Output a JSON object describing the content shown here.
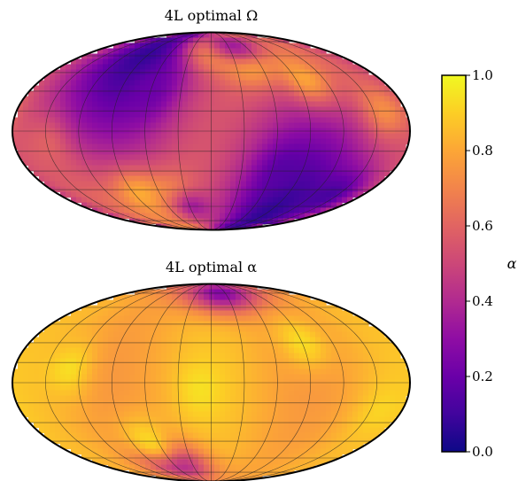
{
  "chart_data": [
    {
      "type": "heatmap",
      "projection": "mollweide",
      "title": "4L optimal Ω",
      "hotspots": [
        {
          "lon": 7,
          "lat": 65,
          "value": 0.85
        },
        {
          "lon": 45,
          "lat": 55,
          "value": 0.92
        },
        {
          "lon": 40,
          "lat": 70,
          "value": 0.3
        },
        {
          "lon": 100,
          "lat": 40,
          "value": 0.82
        },
        {
          "lon": 160,
          "lat": 15,
          "value": 0.75
        },
        {
          "lon": -40,
          "lat": -55,
          "value": 0.95
        },
        {
          "lon": -80,
          "lat": -50,
          "value": 0.85
        },
        {
          "lon": -25,
          "lat": -60,
          "value": 0.3
        },
        {
          "lon": -60,
          "lat": 30,
          "value": 0.2
        },
        {
          "lon": 70,
          "lat": -30,
          "value": 0.15
        },
        {
          "lon": 140,
          "lat": -50,
          "value": 0.1
        },
        {
          "lon": -150,
          "lat": -10,
          "value": 0.6
        }
      ]
    },
    {
      "type": "heatmap",
      "projection": "mollweide",
      "title": "4L optimal α",
      "hotspots": [
        {
          "lon": 20,
          "lat": 75,
          "value": 0.2
        },
        {
          "lon": -55,
          "lat": -65,
          "value": 0.25
        },
        {
          "lon": 90,
          "lat": 30,
          "value": 0.95
        },
        {
          "lon": -10,
          "lat": -5,
          "value": 0.95
        },
        {
          "lon": -130,
          "lat": 10,
          "value": 0.95
        },
        {
          "lon": 160,
          "lat": -20,
          "value": 0.92
        },
        {
          "lon": -70,
          "lat": -45,
          "value": 0.95
        }
      ]
    }
  ],
  "colorbar": {
    "label": "α",
    "min": 0.0,
    "max": 1.0,
    "ticks": [
      "0.0",
      "0.2",
      "0.4",
      "0.6",
      "0.8",
      "1.0"
    ],
    "colormap": "plasma",
    "colors": [
      "#0d0887",
      "#41049d",
      "#6a00a8",
      "#8f0da4",
      "#b12a90",
      "#cc4778",
      "#e16462",
      "#f2844b",
      "#fca636",
      "#fcce25",
      "#f0f921"
    ]
  },
  "grid": true
}
